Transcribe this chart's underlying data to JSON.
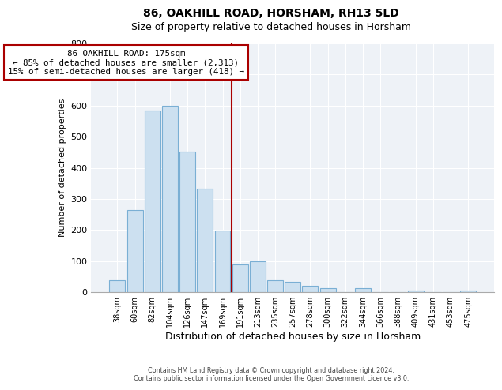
{
  "title": "86, OAKHILL ROAD, HORSHAM, RH13 5LD",
  "subtitle": "Size of property relative to detached houses in Horsham",
  "xlabel": "Distribution of detached houses by size in Horsham",
  "ylabel": "Number of detached properties",
  "bar_labels": [
    "38sqm",
    "60sqm",
    "82sqm",
    "104sqm",
    "126sqm",
    "147sqm",
    "169sqm",
    "191sqm",
    "213sqm",
    "235sqm",
    "257sqm",
    "278sqm",
    "300sqm",
    "322sqm",
    "344sqm",
    "366sqm",
    "388sqm",
    "409sqm",
    "431sqm",
    "453sqm",
    "475sqm"
  ],
  "bar_heights": [
    37,
    265,
    585,
    600,
    453,
    333,
    197,
    90,
    100,
    38,
    32,
    20,
    12,
    0,
    13,
    0,
    0,
    5,
    0,
    0,
    5
  ],
  "bar_color": "#cce0f0",
  "bar_edge_color": "#7aafd4",
  "vline_x_index": 6,
  "vline_color": "#aa0000",
  "annotation_title": "86 OAKHILL ROAD: 175sqm",
  "annotation_line1": "← 85% of detached houses are smaller (2,313)",
  "annotation_line2": "15% of semi-detached houses are larger (418) →",
  "annotation_box_edgecolor": "#aa0000",
  "ylim": [
    0,
    800
  ],
  "yticks": [
    0,
    100,
    200,
    300,
    400,
    500,
    600,
    700,
    800
  ],
  "footer1": "Contains HM Land Registry data © Crown copyright and database right 2024.",
  "footer2": "Contains public sector information licensed under the Open Government Licence v3.0.",
  "background_color": "#ffffff",
  "plot_bg_color": "#eef2f7",
  "grid_color": "#ffffff",
  "title_fontsize": 10,
  "subtitle_fontsize": 9
}
